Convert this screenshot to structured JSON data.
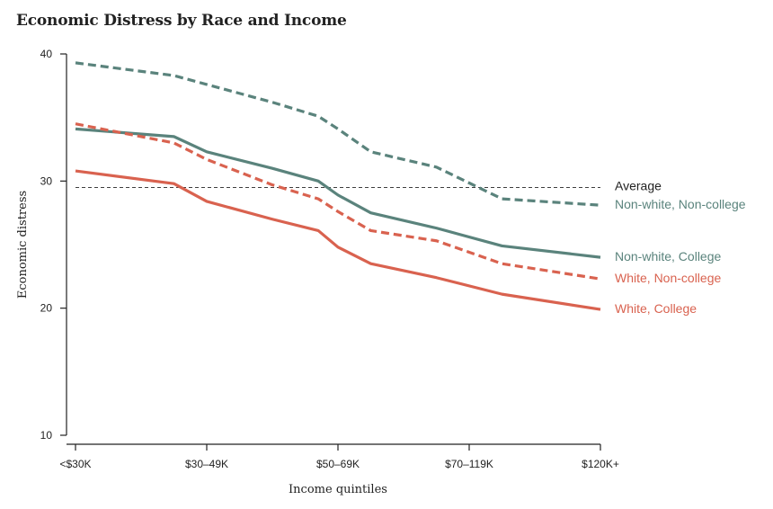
{
  "chart_data": {
    "type": "line",
    "title": "Economic Distress by Race and Income",
    "xlabel": "Income quintiles",
    "ylabel": "Economic distress",
    "categories": [
      "<$30K",
      "$30–49K",
      "$50–69K",
      "$70–119K",
      "$120K+"
    ],
    "ylim": [
      10,
      40
    ],
    "yticks": [
      10,
      20,
      30,
      40
    ],
    "grid": false,
    "legend": "direct labels at right end of lines",
    "reference_line": {
      "label": "Average",
      "value": 29.5,
      "color": "#222222"
    },
    "series": [
      {
        "name": "Non-white, Non-college",
        "color": "#5a837c",
        "dashed": true,
        "x": [
          0,
          0.75,
          1,
          1.5,
          1.85,
          2,
          2.25,
          2.75,
          3.25,
          4
        ],
        "values": [
          39.3,
          38.3,
          37.6,
          36.2,
          35.1,
          34.1,
          32.3,
          31.1,
          28.6,
          28.1
        ]
      },
      {
        "name": "Non-white, College",
        "color": "#5a837c",
        "dashed": false,
        "x": [
          0,
          0.75,
          1,
          1.5,
          1.85,
          2,
          2.25,
          2.75,
          3.25,
          4
        ],
        "values": [
          34.1,
          33.5,
          32.3,
          31.0,
          30.0,
          28.9,
          27.5,
          26.3,
          24.9,
          24.0
        ]
      },
      {
        "name": "White, Non-college",
        "color": "#d9624f",
        "dashed": true,
        "x": [
          0,
          0.75,
          1,
          1.5,
          1.85,
          2,
          2.25,
          2.75,
          3.25,
          4
        ],
        "values": [
          34.5,
          33.0,
          31.7,
          29.7,
          28.6,
          27.6,
          26.1,
          25.3,
          23.5,
          22.3
        ]
      },
      {
        "name": "White, College",
        "color": "#d9624f",
        "dashed": false,
        "x": [
          0,
          0.75,
          1,
          1.5,
          1.85,
          2,
          2.25,
          2.75,
          3.25,
          4
        ],
        "values": [
          30.8,
          29.8,
          28.4,
          27.0,
          26.1,
          24.8,
          23.5,
          22.4,
          21.1,
          19.9
        ]
      }
    ]
  }
}
